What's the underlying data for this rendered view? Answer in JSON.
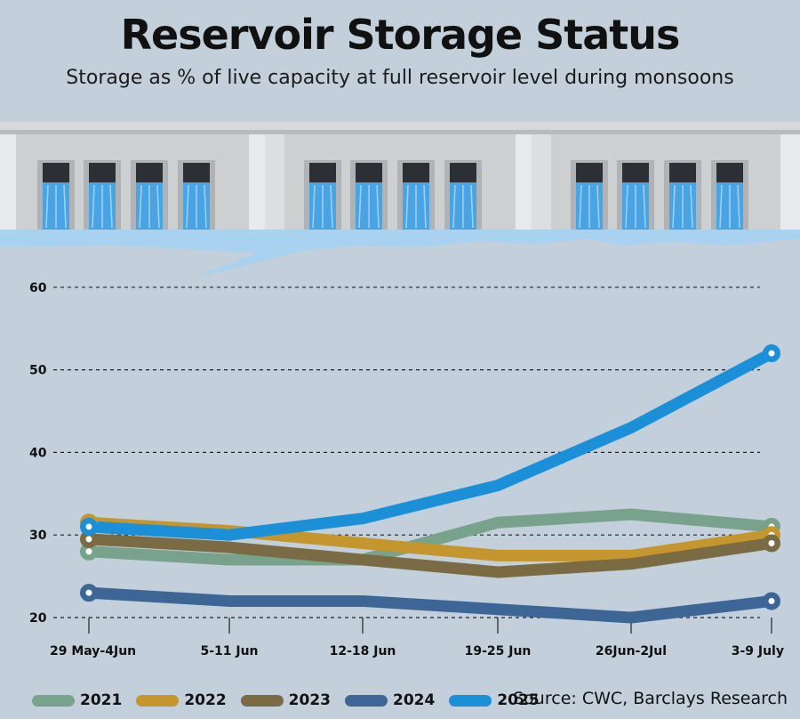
{
  "header": {
    "title": "Reservoir Storage Status",
    "subtitle": "Storage as % of live capacity at full reservoir level during monsoons"
  },
  "source": "Source: CWC, Barclays Research",
  "chart_data": {
    "type": "line",
    "categories": [
      "29 May-4Jun",
      "5-11 Jun",
      "12-18 Jun",
      "19-25 Jun",
      "26Jun-2Jul",
      "3-9 July"
    ],
    "y_ticks": [
      20,
      30,
      40,
      50,
      60
    ],
    "ylim": [
      20,
      60
    ],
    "grid": "dashed horizontal",
    "legend_position": "bottom-left",
    "series": [
      {
        "name": "2021",
        "color": "#78a28c",
        "values": [
          28,
          27,
          27,
          31.5,
          32.5,
          31
        ]
      },
      {
        "name": "2022",
        "color": "#c4962d",
        "values": [
          31.5,
          30.5,
          29,
          27.5,
          27.5,
          30
        ]
      },
      {
        "name": "2023",
        "color": "#7b6b45",
        "values": [
          29.5,
          28.5,
          27,
          25.5,
          26.5,
          29
        ]
      },
      {
        "name": "2024",
        "color": "#3d6596",
        "values": [
          23,
          22,
          22,
          21,
          20,
          22
        ]
      },
      {
        "name": "2025",
        "color": "#1b8fd8",
        "values": [
          31,
          30,
          32,
          36,
          43,
          52
        ]
      }
    ],
    "endpoint_markers": true
  }
}
